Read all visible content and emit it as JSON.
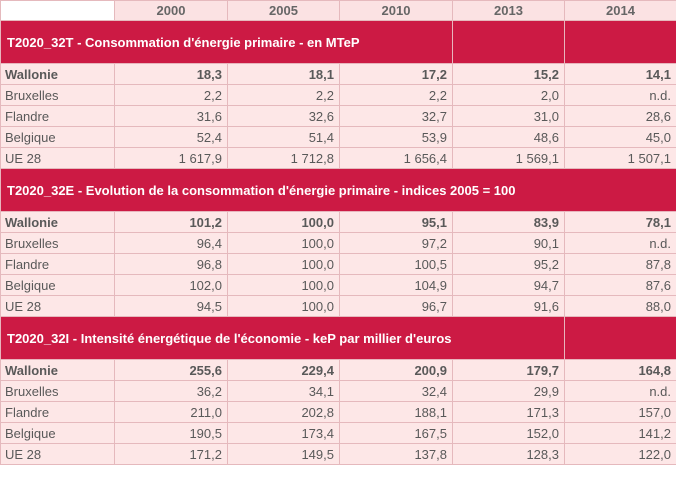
{
  "years": [
    "2000",
    "2005",
    "2010",
    "2013",
    "2014"
  ],
  "sections": [
    {
      "title": "T2020_32T - Consommation d'énergie primaire - en MTeP",
      "rows": [
        {
          "label": "Wallonie",
          "values": [
            "18,3",
            "18,1",
            "17,2",
            "15,2",
            "14,1"
          ]
        },
        {
          "label": "Bruxelles",
          "values": [
            "2,2",
            "2,2",
            "2,2",
            "2,0",
            "n.d."
          ]
        },
        {
          "label": "Flandre",
          "values": [
            "31,6",
            "32,6",
            "32,7",
            "31,0",
            "28,6"
          ]
        },
        {
          "label": "Belgique",
          "values": [
            "52,4",
            "51,4",
            "53,9",
            "48,6",
            "45,0"
          ]
        },
        {
          "label": "UE 28",
          "values": [
            "1 617,9",
            "1 712,8",
            "1 656,4",
            "1 569,1",
            "1 507,1"
          ]
        }
      ]
    },
    {
      "title": "T2020_32E - Evolution de la consommation d'énergie primaire - indices 2005 = 100",
      "rows": [
        {
          "label": "Wallonie",
          "values": [
            "101,2",
            "100,0",
            "95,1",
            "83,9",
            "78,1"
          ]
        },
        {
          "label": "Bruxelles",
          "values": [
            "96,4",
            "100,0",
            "97,2",
            "90,1",
            "n.d."
          ]
        },
        {
          "label": "Flandre",
          "values": [
            "96,8",
            "100,0",
            "100,5",
            "95,2",
            "87,8"
          ]
        },
        {
          "label": "Belgique",
          "values": [
            "102,0",
            "100,0",
            "104,9",
            "94,7",
            "87,6"
          ]
        },
        {
          "label": "UE 28",
          "values": [
            "94,5",
            "100,0",
            "96,7",
            "91,6",
            "88,0"
          ]
        }
      ]
    },
    {
      "title": "T2020_32I - Intensité énergétique de l'économie - keP par millier d'euros",
      "rows": [
        {
          "label": "Wallonie",
          "values": [
            "255,6",
            "229,4",
            "200,9",
            "179,7",
            "164,8"
          ]
        },
        {
          "label": "Bruxelles",
          "values": [
            "36,2",
            "34,1",
            "32,4",
            "29,9",
            "n.d."
          ]
        },
        {
          "label": "Flandre",
          "values": [
            "211,0",
            "202,8",
            "188,1",
            "171,3",
            "157,0"
          ]
        },
        {
          "label": "Belgique",
          "values": [
            "190,5",
            "173,4",
            "167,5",
            "152,0",
            "141,2"
          ]
        },
        {
          "label": "UE 28",
          "values": [
            "171,2",
            "149,5",
            "137,8",
            "128,3",
            "122,0"
          ]
        }
      ]
    }
  ]
}
